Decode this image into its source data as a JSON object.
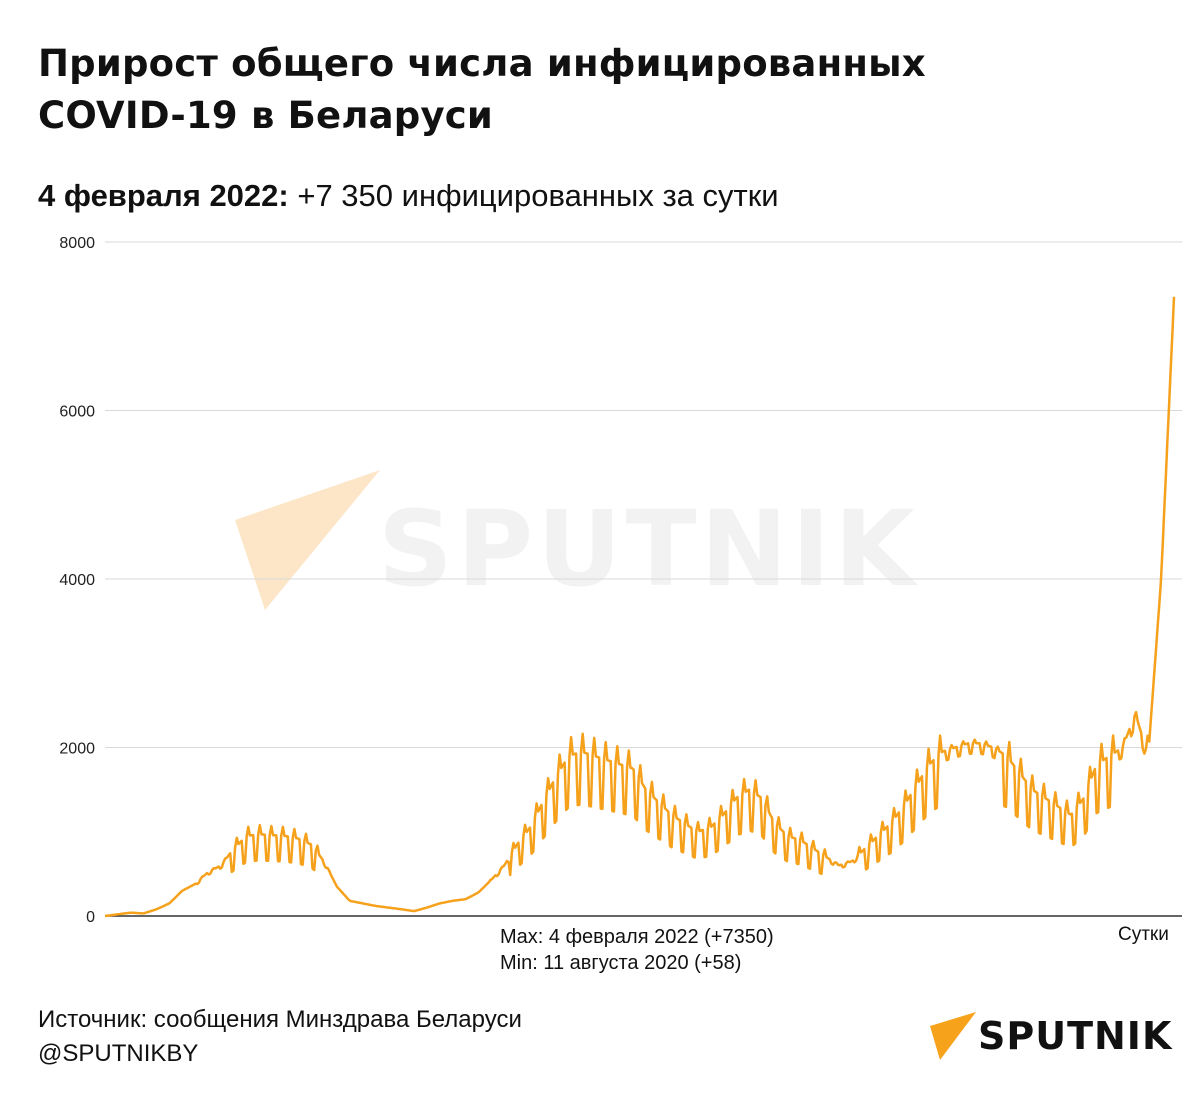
{
  "header": {
    "title_line1": "Прирост общего числа инфицированных",
    "title_line2": "COVID-19 в Беларуси",
    "subtitle_bold": "4 февраля 2022:",
    "subtitle_rest": " +7 350 инфицированных за сутки"
  },
  "annotations": {
    "max": "Max: 4 февраля 2022 (+7350)",
    "min": "Min: 11 августа 2020 (+58)"
  },
  "footer": {
    "source": "Источник: сообщения Минздрава Беларуси",
    "handle": "@SPUTNIKBY",
    "logo_text": "SPUTNIK",
    "watermark_text": "SPUTNIK"
  },
  "colors": {
    "line": "#f5a11c",
    "grid": "#d9d9d9",
    "axis": "#333333",
    "brand": "#f7a21b"
  },
  "chart_data": {
    "type": "line",
    "title": "Прирост общего числа инфицированных COVID-19 в Беларуси",
    "xlabel": "Сутки",
    "ylabel": "",
    "ylim": [
      0,
      8000
    ],
    "yticks": [
      "0",
      "2000",
      "4000",
      "6000",
      "8000"
    ],
    "grid": true,
    "series": [
      {
        "values": [
          0,
          20,
          40,
          30,
          80,
          150,
          300,
          380,
          520,
          600,
          800,
          950,
          970,
          960,
          950,
          920,
          850,
          650,
          350,
          180,
          150,
          120,
          100,
          80,
          58,
          100,
          150,
          180,
          200,
          280,
          430,
          600,
          850,
          1050,
          1350,
          1650,
          1900,
          1950,
          1900,
          1850,
          1800,
          1750,
          1500,
          1350,
          1200,
          1100,
          1000,
          1050,
          1200,
          1400,
          1500,
          1400,
          1100,
          950,
          900,
          800,
          700,
          600,
          650,
          800,
          950,
          1100,
          1300,
          1550,
          1800,
          1950,
          2000,
          2050,
          2050,
          2000,
          1900,
          1700,
          1500,
          1400,
          1300,
          1200,
          1400,
          1800,
          1900,
          2000,
          2400,
          1900,
          4000,
          7350
        ]
      }
    ],
    "max_point": {
      "date": "4 февраля 2022",
      "value": 7350
    },
    "min_point": {
      "date": "11 августа 2020",
      "value": 58
    }
  }
}
